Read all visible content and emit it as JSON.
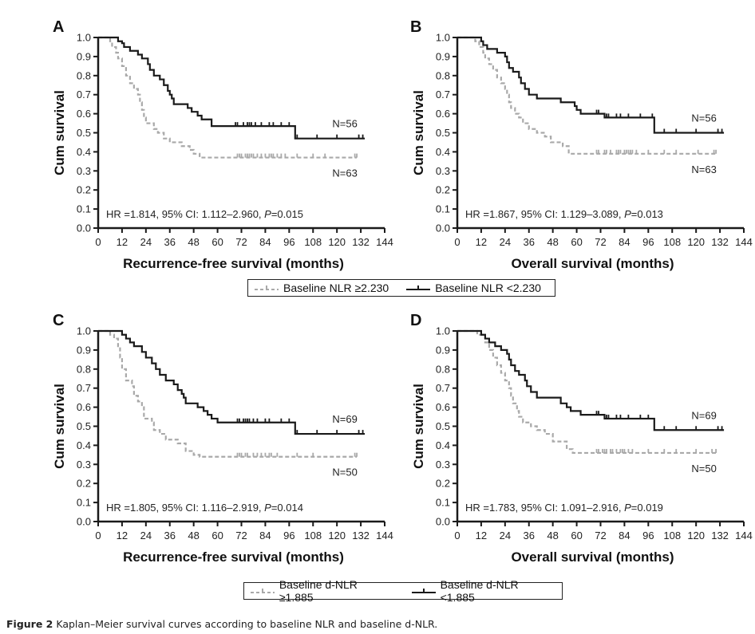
{
  "caption": {
    "label": "Figure 2",
    "text": "Kaplan–Meier survival curves according to baseline NLR and baseline d-NLR."
  },
  "colors": {
    "high_group": "#a9a9a9",
    "low_group": "#1a1a1a",
    "axis": "#1a1a1a"
  },
  "legends": [
    {
      "entries": [
        {
          "label": "Baseline NLR ≥2.230",
          "style": "dashed-gray"
        },
        {
          "label": "Baseline NLR <2.230",
          "style": "solid-black"
        }
      ]
    },
    {
      "entries": [
        {
          "label": "Baseline d-NLR ≥1.885",
          "style": "dashed-gray"
        },
        {
          "label": "Baseline d-NLR <1.885",
          "style": "solid-black"
        }
      ]
    }
  ],
  "chart_data": [
    {
      "type": "line",
      "panel": "A",
      "xlabel": "Recurrence-free survival (months)",
      "ylabel": "Cum survival",
      "xlim": [
        0,
        144
      ],
      "ylim": [
        0,
        1.0
      ],
      "xticks": [
        "0",
        "12",
        "24",
        "36",
        "48",
        "60",
        "72",
        "84",
        "96",
        "108",
        "120",
        "132",
        "144"
      ],
      "yticks": [
        "0.0",
        "0.1",
        "0.2",
        "0.3",
        "0.4",
        "0.5",
        "0.6",
        "0.7",
        "0.8",
        "0.9",
        "1.0"
      ],
      "annotation": "HR =1.814, 95% CI: 1.112–2.960, P=0.015",
      "series": [
        {
          "name": "Baseline NLR ≥2.230",
          "n_label": "N=63",
          "style": "dashed-gray",
          "steps": [
            [
              0,
              1.0
            ],
            [
              6,
              0.98
            ],
            [
              7,
              0.95
            ],
            [
              9,
              0.92
            ],
            [
              10,
              0.89
            ],
            [
              12,
              0.85
            ],
            [
              14,
              0.8
            ],
            [
              16,
              0.76
            ],
            [
              18,
              0.73
            ],
            [
              20,
              0.7
            ],
            [
              21,
              0.66
            ],
            [
              22,
              0.62
            ],
            [
              23,
              0.58
            ],
            [
              24,
              0.55
            ],
            [
              28,
              0.52
            ],
            [
              30,
              0.5
            ],
            [
              33,
              0.47
            ],
            [
              36,
              0.45
            ],
            [
              42,
              0.43
            ],
            [
              46,
              0.41
            ],
            [
              48,
              0.39
            ],
            [
              51,
              0.37
            ],
            [
              130,
              0.37
            ]
          ],
          "censored": [
            70,
            71,
            72,
            74,
            75,
            76,
            77,
            78,
            80,
            82,
            84,
            86,
            87,
            88,
            90,
            92,
            94,
            100,
            108,
            114,
            129,
            130
          ]
        },
        {
          "name": "Baseline NLR <2.230",
          "n_label": "N=56",
          "style": "solid-black",
          "steps": [
            [
              0,
              1.0
            ],
            [
              10,
              0.98
            ],
            [
              12,
              0.97
            ],
            [
              13,
              0.95
            ],
            [
              16,
              0.93
            ],
            [
              20,
              0.91
            ],
            [
              22,
              0.89
            ],
            [
              25,
              0.86
            ],
            [
              26,
              0.83
            ],
            [
              28,
              0.8
            ],
            [
              31,
              0.78
            ],
            [
              33,
              0.75
            ],
            [
              35,
              0.72
            ],
            [
              36,
              0.7
            ],
            [
              37,
              0.68
            ],
            [
              38,
              0.65
            ],
            [
              45,
              0.63
            ],
            [
              47,
              0.61
            ],
            [
              50,
              0.59
            ],
            [
              52,
              0.57
            ],
            [
              57,
              0.535
            ],
            [
              99,
              0.47
            ],
            [
              134,
              0.47
            ]
          ],
          "censored": [
            69,
            70,
            73,
            75,
            76,
            77,
            79,
            82,
            86,
            88,
            92,
            96,
            100,
            110,
            120,
            131,
            133
          ]
        }
      ]
    },
    {
      "type": "line",
      "panel": "B",
      "xlabel": "Overall survival (months)",
      "ylabel": "Cum survival",
      "xlim": [
        0,
        144
      ],
      "ylim": [
        0,
        1.0
      ],
      "xticks": [
        "0",
        "12",
        "24",
        "36",
        "48",
        "60",
        "72",
        "84",
        "96",
        "108",
        "120",
        "132",
        "144"
      ],
      "yticks": [
        "0.0",
        "0.1",
        "0.2",
        "0.3",
        "0.4",
        "0.5",
        "0.6",
        "0.7",
        "0.8",
        "0.9",
        "1.0"
      ],
      "annotation": "HR =1.867, 95% CI: 1.129–3.089, P=0.013",
      "series": [
        {
          "name": "Baseline NLR ≥2.230",
          "n_label": "N=63",
          "style": "dashed-gray",
          "steps": [
            [
              0,
              1.0
            ],
            [
              9,
              0.98
            ],
            [
              11,
              0.95
            ],
            [
              13,
              0.92
            ],
            [
              14,
              0.89
            ],
            [
              16,
              0.86
            ],
            [
              18,
              0.83
            ],
            [
              20,
              0.79
            ],
            [
              22,
              0.76
            ],
            [
              24,
              0.73
            ],
            [
              25,
              0.7
            ],
            [
              26,
              0.66
            ],
            [
              27,
              0.63
            ],
            [
              29,
              0.6
            ],
            [
              31,
              0.58
            ],
            [
              33,
              0.55
            ],
            [
              36,
              0.52
            ],
            [
              40,
              0.5
            ],
            [
              44,
              0.48
            ],
            [
              47,
              0.45
            ],
            [
              53,
              0.43
            ],
            [
              56,
              0.39
            ],
            [
              130,
              0.39
            ]
          ],
          "censored": [
            70,
            71,
            74,
            75,
            77,
            80,
            81,
            82,
            84,
            85,
            86,
            87,
            88,
            90,
            96,
            104,
            110,
            121,
            129,
            130
          ]
        },
        {
          "name": "Baseline NLR <2.230",
          "n_label": "N=56",
          "style": "solid-black",
          "steps": [
            [
              0,
              1.0
            ],
            [
              12,
              0.98
            ],
            [
              13,
              0.96
            ],
            [
              15,
              0.94
            ],
            [
              20,
              0.92
            ],
            [
              24,
              0.9
            ],
            [
              25,
              0.87
            ],
            [
              26,
              0.84
            ],
            [
              28,
              0.82
            ],
            [
              31,
              0.79
            ],
            [
              32,
              0.76
            ],
            [
              34,
              0.73
            ],
            [
              36,
              0.7
            ],
            [
              40,
              0.68
            ],
            [
              52,
              0.66
            ],
            [
              59,
              0.64
            ],
            [
              60,
              0.62
            ],
            [
              62,
              0.6
            ],
            [
              74,
              0.58
            ],
            [
              99,
              0.5
            ],
            [
              134,
              0.5
            ]
          ],
          "censored": [
            70,
            71,
            74,
            75,
            76,
            80,
            82,
            86,
            92,
            98,
            104,
            110,
            120,
            131,
            133
          ]
        }
      ]
    },
    {
      "type": "line",
      "panel": "C",
      "xlabel": "Recurrence-free survival (months)",
      "ylabel": "Cum survival",
      "xlim": [
        0,
        144
      ],
      "ylim": [
        0,
        1.0
      ],
      "xticks": [
        "0",
        "12",
        "24",
        "36",
        "48",
        "60",
        "72",
        "84",
        "96",
        "108",
        "120",
        "132",
        "144"
      ],
      "yticks": [
        "0.0",
        "0.1",
        "0.2",
        "0.3",
        "0.4",
        "0.5",
        "0.6",
        "0.7",
        "0.8",
        "0.9",
        "1.0"
      ],
      "annotation": "HR =1.805, 95% CI: 1.116–2.919, P=0.014",
      "series": [
        {
          "name": "Baseline d-NLR ≥1.885",
          "n_label": "N=50",
          "style": "dashed-gray",
          "steps": [
            [
              0,
              1.0
            ],
            [
              6,
              0.98
            ],
            [
              8,
              0.96
            ],
            [
              10,
              0.92
            ],
            [
              11,
              0.86
            ],
            [
              12,
              0.8
            ],
            [
              14,
              0.74
            ],
            [
              17,
              0.71
            ],
            [
              18,
              0.66
            ],
            [
              20,
              0.63
            ],
            [
              22,
              0.6
            ],
            [
              23,
              0.54
            ],
            [
              27,
              0.52
            ],
            [
              28,
              0.48
            ],
            [
              31,
              0.46
            ],
            [
              34,
              0.43
            ],
            [
              40,
              0.41
            ],
            [
              44,
              0.37
            ],
            [
              48,
              0.35
            ],
            [
              51,
              0.34
            ],
            [
              130,
              0.34
            ]
          ],
          "censored": [
            70,
            71,
            72,
            74,
            75,
            78,
            80,
            82,
            84,
            86,
            87,
            90,
            100,
            108,
            129,
            130
          ]
        },
        {
          "name": "Baseline d-NLR <1.885",
          "n_label": "N=69",
          "style": "solid-black",
          "steps": [
            [
              0,
              1.0
            ],
            [
              12,
              0.98
            ],
            [
              14,
              0.96
            ],
            [
              16,
              0.94
            ],
            [
              18,
              0.92
            ],
            [
              22,
              0.89
            ],
            [
              24,
              0.86
            ],
            [
              27,
              0.83
            ],
            [
              29,
              0.8
            ],
            [
              31,
              0.77
            ],
            [
              34,
              0.74
            ],
            [
              38,
              0.72
            ],
            [
              40,
              0.69
            ],
            [
              42,
              0.67
            ],
            [
              43,
              0.65
            ],
            [
              44,
              0.62
            ],
            [
              50,
              0.6
            ],
            [
              53,
              0.58
            ],
            [
              55,
              0.56
            ],
            [
              57,
              0.54
            ],
            [
              60,
              0.52
            ],
            [
              99,
              0.46
            ],
            [
              134,
              0.46
            ]
          ],
          "censored": [
            70,
            71,
            73,
            74,
            75,
            76,
            78,
            80,
            84,
            86,
            92,
            96,
            100,
            110,
            120,
            131,
            133
          ]
        }
      ]
    },
    {
      "type": "line",
      "panel": "D",
      "xlabel": "Overall survival (months)",
      "ylabel": "Cum survival",
      "xlim": [
        0,
        144
      ],
      "ylim": [
        0,
        1.0
      ],
      "xticks": [
        "0",
        "12",
        "24",
        "36",
        "48",
        "60",
        "72",
        "84",
        "96",
        "108",
        "120",
        "132",
        "144"
      ],
      "yticks": [
        "0.0",
        "0.1",
        "0.2",
        "0.3",
        "0.4",
        "0.5",
        "0.6",
        "0.7",
        "0.8",
        "0.9",
        "1.0"
      ],
      "annotation": "HR =1.783, 95% CI: 1.091–2.916, P=0.019",
      "series": [
        {
          "name": "Baseline d-NLR ≥1.885",
          "n_label": "N=50",
          "style": "dashed-gray",
          "steps": [
            [
              0,
              1.0
            ],
            [
              10,
              0.98
            ],
            [
              14,
              0.94
            ],
            [
              16,
              0.9
            ],
            [
              18,
              0.86
            ],
            [
              20,
              0.82
            ],
            [
              22,
              0.78
            ],
            [
              24,
              0.74
            ],
            [
              26,
              0.7
            ],
            [
              27,
              0.66
            ],
            [
              28,
              0.62
            ],
            [
              30,
              0.58
            ],
            [
              31,
              0.55
            ],
            [
              33,
              0.52
            ],
            [
              37,
              0.5
            ],
            [
              40,
              0.48
            ],
            [
              44,
              0.46
            ],
            [
              48,
              0.42
            ],
            [
              55,
              0.38
            ],
            [
              58,
              0.36
            ],
            [
              130,
              0.36
            ]
          ],
          "censored": [
            70,
            71,
            73,
            74,
            75,
            77,
            78,
            80,
            82,
            83,
            84,
            86,
            88,
            96,
            104,
            110,
            120,
            128,
            130
          ]
        },
        {
          "name": "Baseline d-NLR <1.885",
          "n_label": "N=69",
          "style": "solid-black",
          "steps": [
            [
              0,
              1.0
            ],
            [
              12,
              0.98
            ],
            [
              14,
              0.96
            ],
            [
              16,
              0.94
            ],
            [
              19,
              0.92
            ],
            [
              22,
              0.9
            ],
            [
              25,
              0.88
            ],
            [
              26,
              0.85
            ],
            [
              27,
              0.82
            ],
            [
              29,
              0.79
            ],
            [
              31,
              0.77
            ],
            [
              34,
              0.74
            ],
            [
              35,
              0.71
            ],
            [
              37,
              0.68
            ],
            [
              40,
              0.65
            ],
            [
              52,
              0.62
            ],
            [
              55,
              0.6
            ],
            [
              57,
              0.58
            ],
            [
              62,
              0.56
            ],
            [
              74,
              0.54
            ],
            [
              99,
              0.48
            ],
            [
              134,
              0.48
            ]
          ],
          "censored": [
            70,
            71,
            74,
            75,
            76,
            80,
            82,
            86,
            92,
            96,
            104,
            110,
            120,
            131,
            133
          ]
        }
      ]
    }
  ]
}
